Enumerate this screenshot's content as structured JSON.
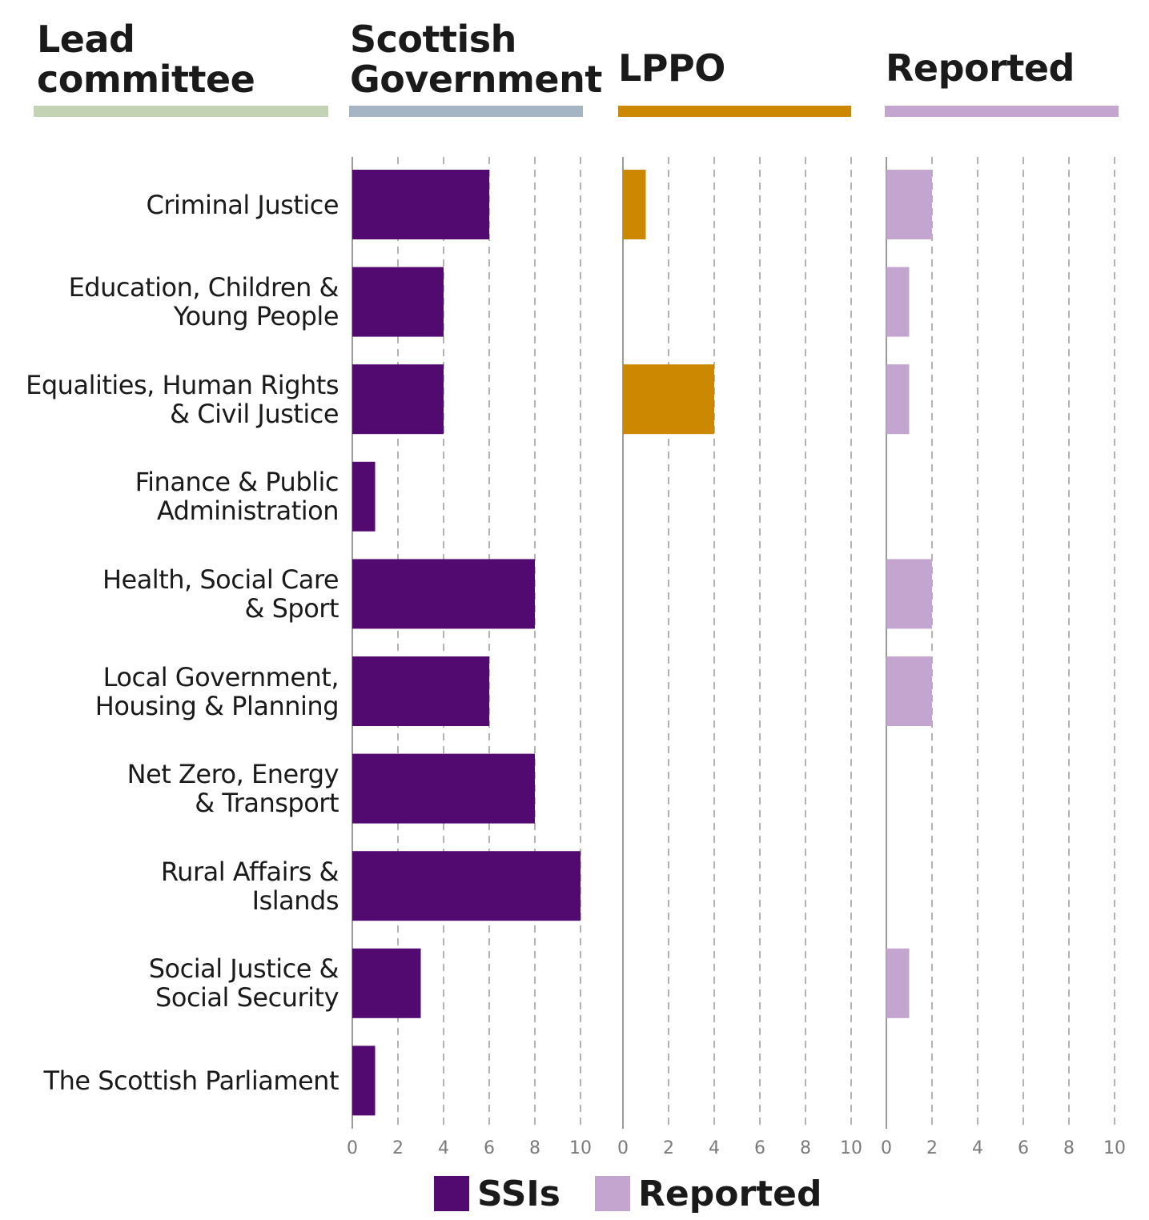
{
  "headers": {
    "lead": [
      "Lead",
      "committee"
    ],
    "sg": [
      "Scottish",
      "Government"
    ],
    "lppo": "LPPO",
    "reported": "Reported"
  },
  "colors": {
    "lead_bar": "#c3d3b3",
    "sg_bar": "#a5b5c3",
    "lppo_bar": "#cc8800",
    "reported_bar": "#c3a5d0",
    "ssi": "#520a70",
    "lppo": "#cc8800",
    "reported": "#c3a5d0",
    "grid": "#9a9a9a",
    "tick_text": "#7a7a7a"
  },
  "legend": [
    {
      "label": "SSIs",
      "color": "#520a70"
    },
    {
      "label": "Reported",
      "color": "#c3a5d0"
    }
  ],
  "chart_data": {
    "type": "bar",
    "orientation": "horizontal",
    "categories": [
      [
        "Criminal Justice"
      ],
      [
        "Education, Children &",
        "Young People"
      ],
      [
        "Equalities, Human Rights",
        "& Civil Justice"
      ],
      [
        "Finance & Public",
        "Administration"
      ],
      [
        "Health, Social Care",
        "& Sport"
      ],
      [
        "Local Government,",
        "Housing & Planning"
      ],
      [
        "Net Zero, Energy",
        "& Transport"
      ],
      [
        "Rural Affairs &",
        "Islands"
      ],
      [
        "Social Justice &",
        "Social Security"
      ],
      [
        "The Scottish Parliament"
      ]
    ],
    "panels": [
      {
        "key": "sg",
        "values": [
          6,
          4,
          4,
          1,
          8,
          6,
          8,
          10,
          3,
          1
        ]
      },
      {
        "key": "lppo",
        "values": [
          1,
          0,
          4,
          0,
          0,
          0,
          0,
          0,
          0,
          0
        ]
      },
      {
        "key": "reported",
        "values": [
          2,
          1,
          1,
          0,
          2,
          2,
          0,
          0,
          1,
          0
        ]
      }
    ],
    "xlim": [
      0,
      10
    ],
    "xticks": [
      0,
      2,
      4,
      6,
      8,
      10
    ],
    "grid": true
  }
}
